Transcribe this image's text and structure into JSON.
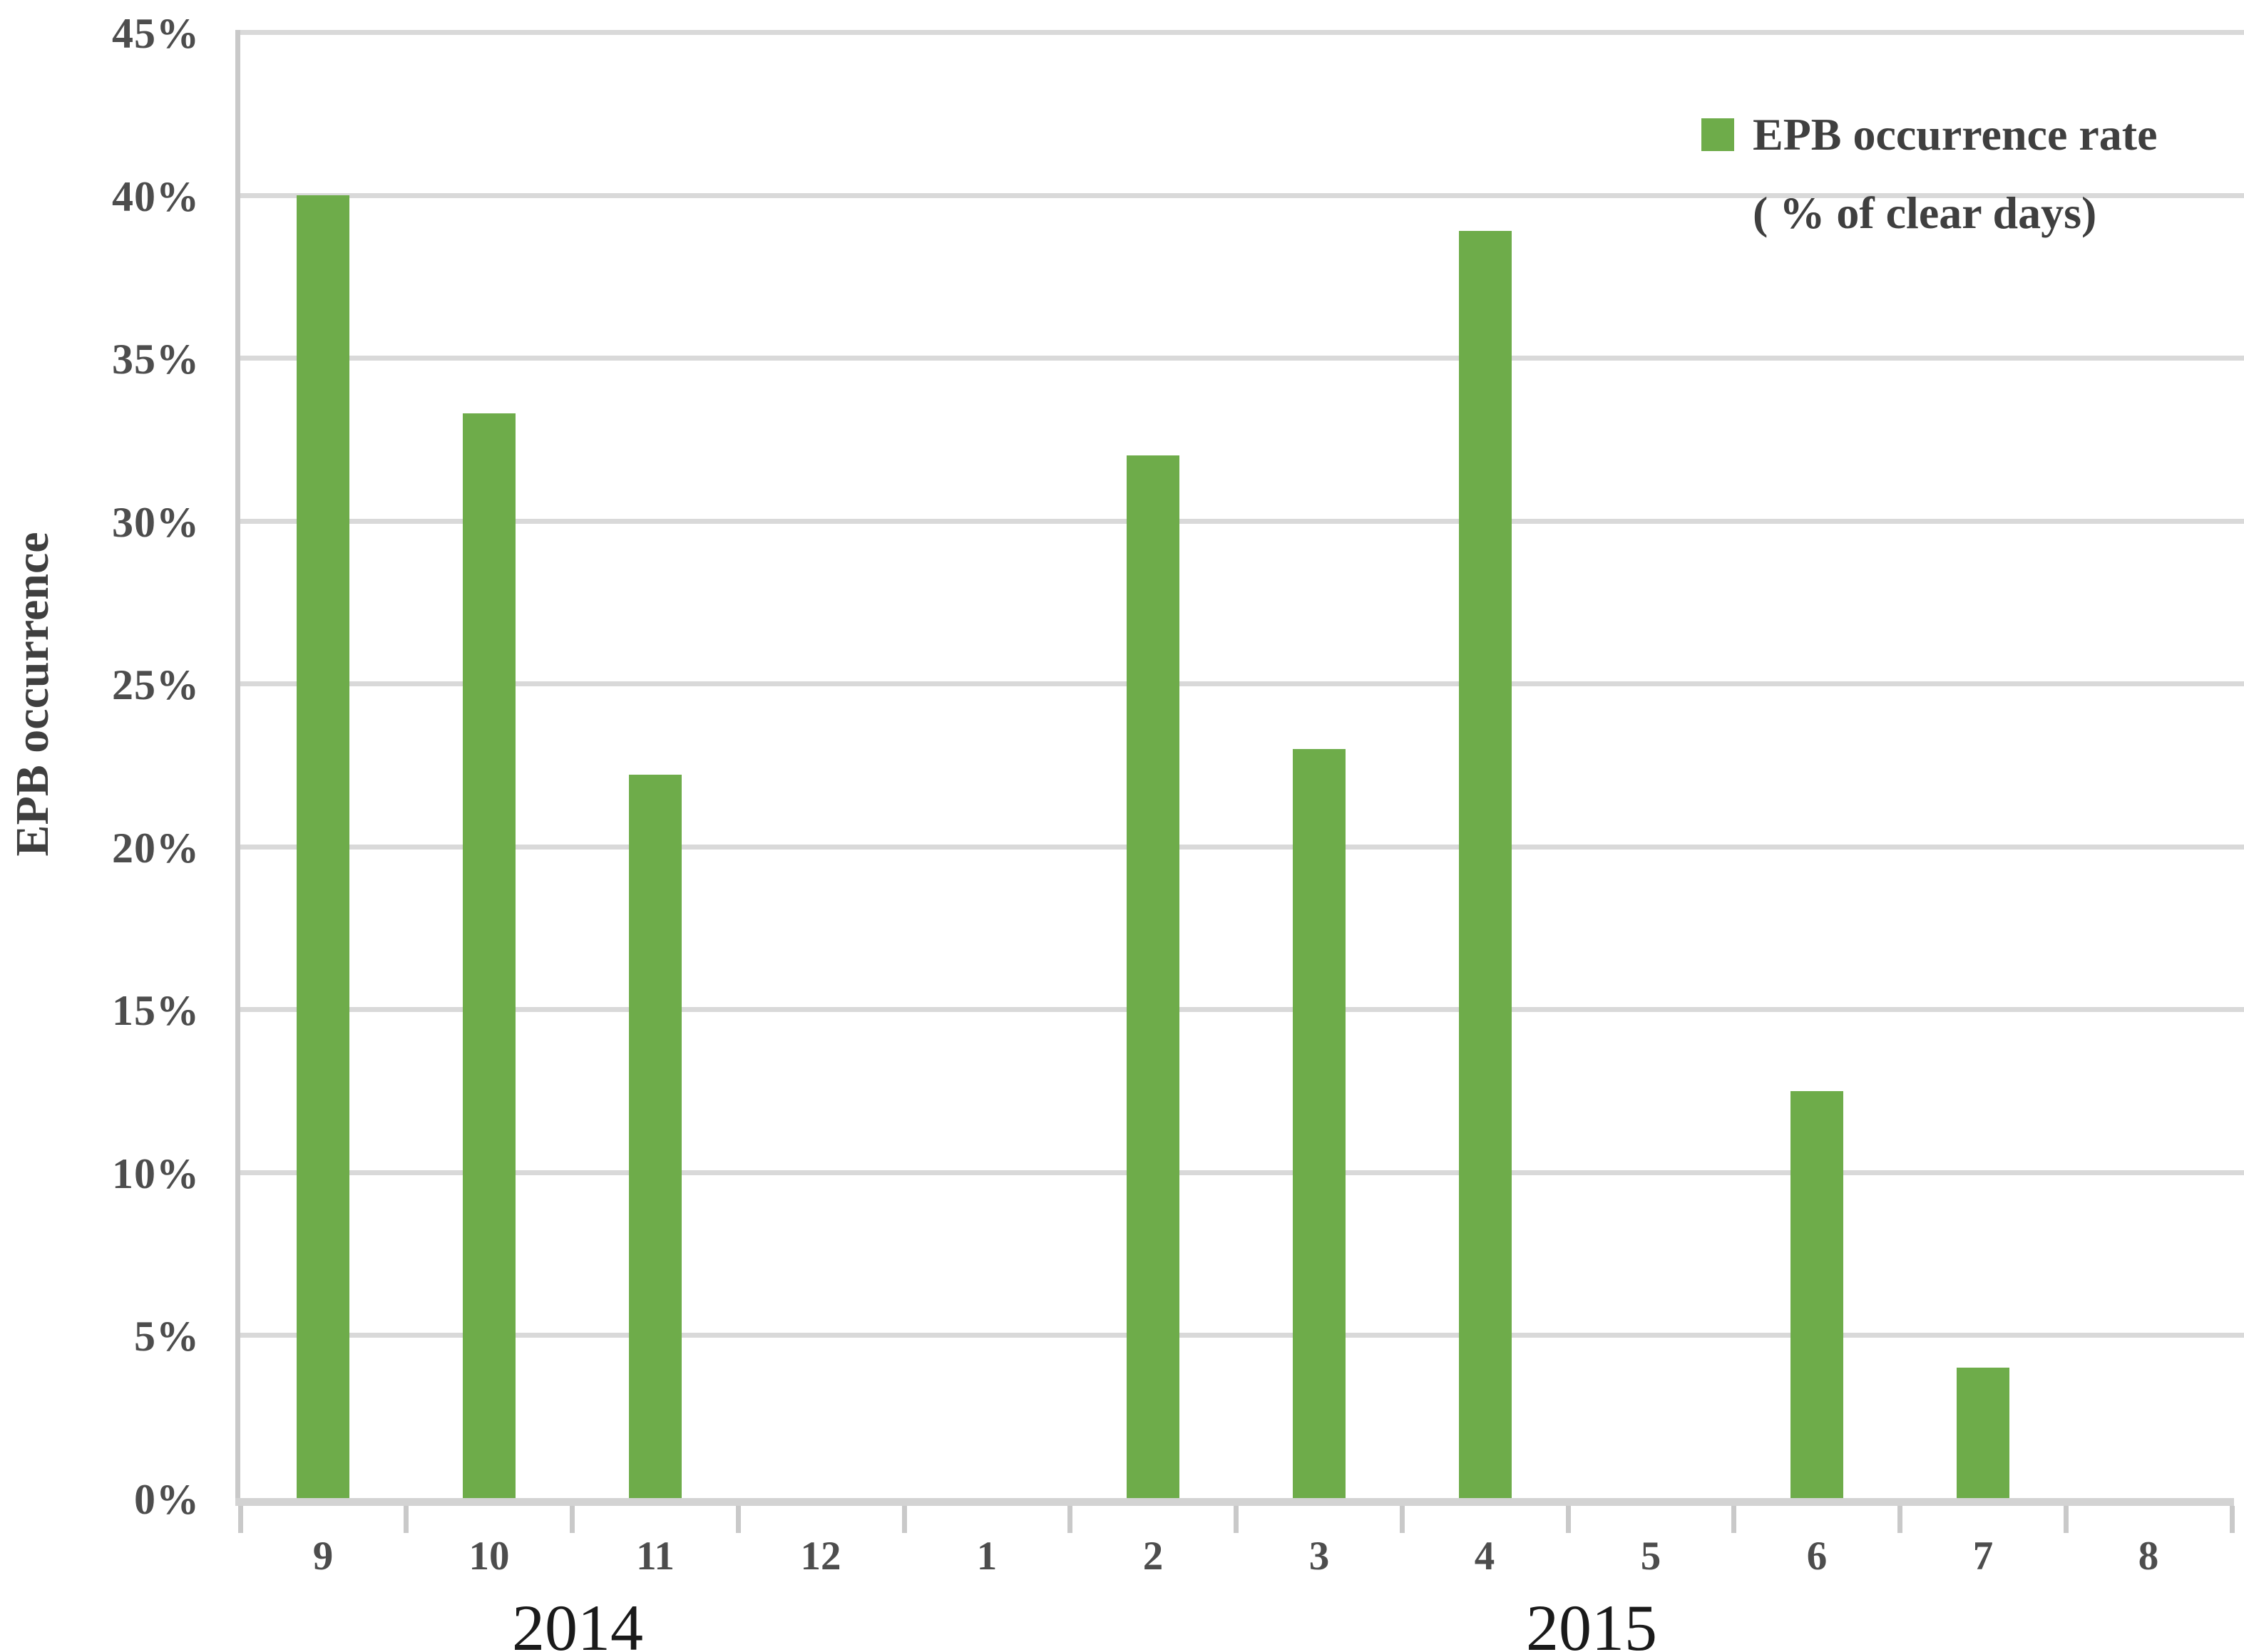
{
  "chart_data": {
    "type": "bar",
    "title": "",
    "categories": [
      "9",
      "10",
      "11",
      "12",
      "1",
      "2",
      "3",
      "4",
      "5",
      "6",
      "7",
      "8"
    ],
    "values": [
      40.0,
      33.3,
      22.2,
      0,
      0,
      32.0,
      23.0,
      38.9,
      0,
      12.5,
      4.0,
      0
    ],
    "series_name": "EPB occurrence rate ( % of clear days)",
    "year_groups": [
      {
        "label": "2014",
        "start_index": 0,
        "end_index": 3
      },
      {
        "label": "2015",
        "start_index": 4,
        "end_index": 11
      }
    ],
    "xlabel": "",
    "ylabel": "EPB occurrence",
    "ylim": [
      0,
      45
    ],
    "ytick_step": 5,
    "y_tick_labels": [
      "0%",
      "5%",
      "10%",
      "15%",
      "20%",
      "25%",
      "30%",
      "35%",
      "40%",
      "45%"
    ],
    "grid": true,
    "legend_position": "top-right",
    "legend_lines": [
      "EPB occurrence rate",
      "( % of clear days)"
    ],
    "colors": {
      "bar": "#6EAC4A",
      "gridline": "#D9D9D9",
      "axis_line": "#C9C9C9",
      "tick_label_text": "#4D4D4D",
      "axis_title_text": "#3F3F3F",
      "year_label_text": "#1A1A1A",
      "background": "#FFFFFF"
    }
  }
}
